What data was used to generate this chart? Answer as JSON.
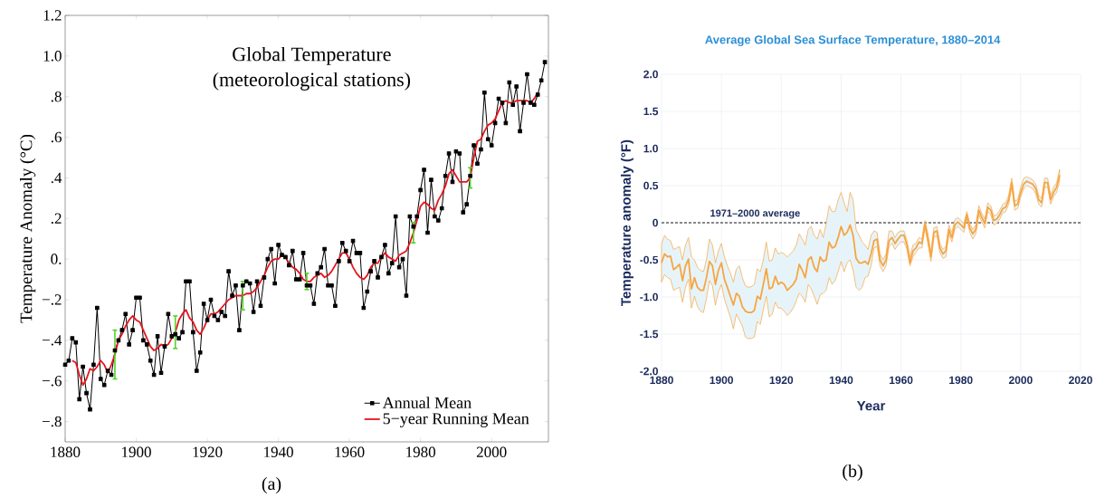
{
  "chart_data": [
    {
      "type": "line",
      "title": "Global Temperature",
      "subtitle": "(meteorological stations)",
      "ylabel": "Temperature Anomaly (°C)",
      "xlim": [
        1880,
        2016
      ],
      "ylim": [
        -0.9,
        1.2
      ],
      "xticks": [
        1880,
        1900,
        1920,
        1940,
        1960,
        1980,
        2000
      ],
      "yticks": [
        1.2,
        {
          "value": 1.0,
          "label": "1.0"
        },
        {
          "value": 0.8,
          "label": ".8"
        },
        {
          "value": 0.6,
          "label": ".6"
        },
        {
          "value": 0.4,
          "label": ".4"
        },
        {
          "value": 0.2,
          "label": ".2"
        },
        {
          "value": 0,
          "label": "0."
        },
        {
          "value": -0.2,
          "label": "−.2"
        },
        {
          "value": -0.4,
          "label": "−.4"
        },
        {
          "value": -0.6,
          "label": "−.6"
        },
        {
          "value": -0.8,
          "label": "−.8"
        }
      ],
      "legend": "bottom right",
      "annotations": [
        "(a)"
      ],
      "series": [
        {
          "name": "Annual Mean",
          "color": "#000000",
          "marker": "square",
          "x": [
            1880,
            1881,
            1882,
            1883,
            1884,
            1885,
            1886,
            1887,
            1888,
            1889,
            1890,
            1891,
            1892,
            1893,
            1894,
            1895,
            1896,
            1897,
            1898,
            1899,
            1900,
            1901,
            1902,
            1903,
            1904,
            1905,
            1906,
            1907,
            1908,
            1909,
            1910,
            1911,
            1912,
            1913,
            1914,
            1915,
            1916,
            1917,
            1918,
            1919,
            1920,
            1921,
            1922,
            1923,
            1924,
            1925,
            1926,
            1927,
            1928,
            1929,
            1930,
            1931,
            1932,
            1933,
            1934,
            1935,
            1936,
            1937,
            1938,
            1939,
            1940,
            1941,
            1942,
            1943,
            1944,
            1945,
            1946,
            1947,
            1948,
            1949,
            1950,
            1951,
            1952,
            1953,
            1954,
            1955,
            1956,
            1957,
            1958,
            1959,
            1960,
            1961,
            1962,
            1963,
            1964,
            1965,
            1966,
            1967,
            1968,
            1969,
            1970,
            1971,
            1972,
            1973,
            1974,
            1975,
            1976,
            1977,
            1978,
            1979,
            1980,
            1981,
            1982,
            1983,
            1984,
            1985,
            1986,
            1987,
            1988,
            1989,
            1990,
            1991,
            1992,
            1993,
            1994,
            1995,
            1996,
            1997,
            1998,
            1999,
            2000,
            2001,
            2002,
            2003,
            2004,
            2005,
            2006,
            2007,
            2008,
            2009,
            2010,
            2011,
            2012,
            2013,
            2014,
            2015
          ],
          "values": [
            -0.52,
            -0.5,
            -0.39,
            -0.41,
            -0.69,
            -0.53,
            -0.66,
            -0.74,
            -0.52,
            -0.24,
            -0.59,
            -0.62,
            -0.55,
            -0.57,
            -0.45,
            -0.4,
            -0.35,
            -0.27,
            -0.42,
            -0.35,
            -0.19,
            -0.19,
            -0.4,
            -0.42,
            -0.5,
            -0.57,
            -0.38,
            -0.56,
            -0.43,
            -0.27,
            -0.38,
            -0.37,
            -0.39,
            -0.36,
            -0.11,
            -0.11,
            -0.36,
            -0.55,
            -0.46,
            -0.22,
            -0.3,
            -0.2,
            -0.28,
            -0.3,
            -0.26,
            -0.28,
            -0.06,
            -0.18,
            -0.13,
            -0.35,
            -0.13,
            -0.11,
            -0.12,
            -0.26,
            -0.11,
            -0.23,
            -0.09,
            0.0,
            0.05,
            -0.12,
            0.07,
            0.02,
            0.01,
            -0.03,
            0.04,
            -0.1,
            -0.1,
            0.03,
            -0.13,
            -0.13,
            -0.22,
            -0.07,
            -0.04,
            0.05,
            -0.13,
            -0.13,
            -0.23,
            -0.01,
            0.08,
            0.04,
            -0.01,
            0.09,
            0.03,
            0.03,
            -0.24,
            -0.16,
            -0.06,
            -0.01,
            -0.09,
            0.01,
            0.07,
            -0.07,
            -0.02,
            0.21,
            -0.04,
            0.0,
            -0.18,
            0.21,
            0.16,
            0.21,
            0.34,
            0.44,
            0.13,
            0.39,
            0.21,
            0.19,
            0.25,
            0.41,
            0.52,
            0.38,
            0.53,
            0.52,
            0.23,
            0.27,
            0.41,
            0.56,
            0.47,
            0.54,
            0.82,
            0.59,
            0.56,
            0.67,
            0.79,
            0.77,
            0.67,
            0.87,
            0.76,
            0.85,
            0.63,
            0.77,
            0.91,
            0.77,
            0.76,
            0.81,
            0.88,
            0.97
          ]
        },
        {
          "name": "5−year Running Mean",
          "color": "#e8141c",
          "marker": "none",
          "x": [
            1882,
            1883,
            1884,
            1885,
            1886,
            1887,
            1888,
            1889,
            1890,
            1891,
            1892,
            1893,
            1894,
            1895,
            1896,
            1897,
            1898,
            1899,
            1900,
            1901,
            1902,
            1903,
            1904,
            1905,
            1906,
            1907,
            1908,
            1909,
            1910,
            1911,
            1912,
            1913,
            1914,
            1915,
            1916,
            1917,
            1918,
            1919,
            1920,
            1921,
            1922,
            1923,
            1924,
            1925,
            1926,
            1927,
            1928,
            1929,
            1930,
            1931,
            1932,
            1933,
            1934,
            1935,
            1936,
            1937,
            1938,
            1939,
            1940,
            1941,
            1942,
            1943,
            1944,
            1945,
            1946,
            1947,
            1948,
            1949,
            1950,
            1951,
            1952,
            1953,
            1954,
            1955,
            1956,
            1957,
            1958,
            1959,
            1960,
            1961,
            1962,
            1963,
            1964,
            1965,
            1966,
            1967,
            1968,
            1969,
            1970,
            1971,
            1972,
            1973,
            1974,
            1975,
            1976,
            1977,
            1978,
            1979,
            1980,
            1981,
            1982,
            1983,
            1984,
            1985,
            1986,
            1987,
            1988,
            1989,
            1990,
            1991,
            1992,
            1993,
            1994,
            1995,
            1996,
            1997,
            1998,
            1999,
            2000,
            2001,
            2002,
            2003,
            2004,
            2005,
            2006,
            2007,
            2008,
            2009,
            2010,
            2011,
            2012,
            2013
          ],
          "values": [
            -0.5,
            -0.51,
            -0.57,
            -0.62,
            -0.59,
            -0.54,
            -0.55,
            -0.53,
            -0.5,
            -0.52,
            -0.56,
            -0.52,
            -0.47,
            -0.4,
            -0.37,
            -0.33,
            -0.3,
            -0.28,
            -0.3,
            -0.31,
            -0.35,
            -0.39,
            -0.43,
            -0.45,
            -0.44,
            -0.42,
            -0.43,
            -0.42,
            -0.39,
            -0.36,
            -0.3,
            -0.27,
            -0.25,
            -0.29,
            -0.31,
            -0.35,
            -0.37,
            -0.34,
            -0.3,
            -0.27,
            -0.27,
            -0.26,
            -0.24,
            -0.22,
            -0.2,
            -0.19,
            -0.18,
            -0.18,
            -0.18,
            -0.17,
            -0.17,
            -0.16,
            -0.14,
            -0.11,
            -0.08,
            -0.04,
            -0.01,
            0.0,
            0.0,
            0.02,
            0.01,
            -0.02,
            -0.04,
            -0.05,
            -0.07,
            -0.1,
            -0.11,
            -0.11,
            -0.09,
            -0.08,
            -0.07,
            -0.09,
            -0.08,
            -0.06,
            -0.03,
            0.0,
            0.03,
            0.03,
            0.0,
            -0.04,
            -0.07,
            -0.09,
            -0.1,
            -0.08,
            -0.04,
            -0.02,
            -0.02,
            0.01,
            0.03,
            0.01,
            0.0,
            -0.01,
            0.02,
            0.03,
            0.04,
            0.08,
            0.13,
            0.19,
            0.26,
            0.28,
            0.27,
            0.25,
            0.24,
            0.29,
            0.32,
            0.36,
            0.42,
            0.44,
            0.41,
            0.38,
            0.38,
            0.38,
            0.4,
            0.5,
            0.58,
            0.59,
            0.63,
            0.66,
            0.67,
            0.69,
            0.73,
            0.77,
            0.78,
            0.77,
            0.77,
            0.78,
            0.78,
            0.78,
            0.78,
            0.77,
            0.79,
            0.82
          ],
          "errors": [
            null,
            null,
            null,
            null,
            null,
            null,
            null,
            null,
            null,
            null,
            null,
            null,
            0.12,
            null,
            null,
            null,
            null,
            null,
            null,
            null,
            null,
            null,
            null,
            null,
            null,
            null,
            null,
            null,
            null,
            0.08,
            null,
            null,
            null,
            null,
            null,
            null,
            null,
            null,
            null,
            null,
            null,
            null,
            null,
            null,
            null,
            null,
            null,
            null,
            0.07,
            null,
            null,
            null,
            null,
            null,
            null,
            null,
            null,
            null,
            null,
            null,
            null,
            null,
            null,
            null,
            null,
            null,
            0.04,
            null,
            null,
            null,
            null,
            null,
            null,
            null,
            null,
            null,
            null,
            null,
            null,
            null,
            null,
            null,
            null,
            null,
            null,
            null,
            null,
            null,
            null,
            null,
            null,
            null,
            null,
            null,
            null,
            null,
            0.05,
            null,
            null,
            null,
            null,
            null,
            null,
            null,
            null,
            null,
            null,
            null,
            null,
            null,
            null,
            null,
            0.05,
            null,
            null,
            null,
            null,
            null,
            null,
            null,
            null,
            null,
            null,
            null,
            null,
            null,
            null,
            null,
            null,
            null,
            null,
            null
          ]
        }
      ]
    },
    {
      "type": "line",
      "title": "Average Global Sea Surface Temperature, 1880–2014",
      "xlabel": "Year",
      "ylabel": "Temperature anomaly (°F)",
      "xlim": [
        1880,
        2020
      ],
      "ylim": [
        -2,
        2
      ],
      "xticks": [
        1880,
        1900,
        1920,
        1940,
        1960,
        1980,
        2000,
        2020
      ],
      "yticks": [
        {
          "value": 2,
          "label": "2.0"
        },
        1.5,
        {
          "value": 1,
          "label": "1.0"
        },
        0.5,
        0,
        -0.5,
        {
          "value": -1,
          "label": "-1.0"
        },
        -1.5,
        {
          "value": -2,
          "label": "-2.0"
        }
      ],
      "grid": true,
      "annotations": [
        "(b)"
      ],
      "ref_lines": [
        {
          "axis": "y",
          "value": 0,
          "label": "1971–2000 average",
          "color": "#000000",
          "line_style": "dashed"
        }
      ],
      "series": [
        {
          "color": "#f7a541",
          "x": [
            1880,
            1881,
            1882,
            1883,
            1884,
            1885,
            1886,
            1887,
            1888,
            1889,
            1890,
            1891,
            1892,
            1893,
            1894,
            1895,
            1896,
            1897,
            1898,
            1899,
            1900,
            1901,
            1902,
            1903,
            1904,
            1905,
            1906,
            1907,
            1908,
            1909,
            1910,
            1911,
            1912,
            1913,
            1914,
            1915,
            1916,
            1917,
            1918,
            1919,
            1920,
            1921,
            1922,
            1923,
            1924,
            1925,
            1926,
            1927,
            1928,
            1929,
            1930,
            1931,
            1932,
            1933,
            1934,
            1935,
            1936,
            1937,
            1938,
            1939,
            1940,
            1941,
            1942,
            1943,
            1944,
            1945,
            1946,
            1947,
            1948,
            1949,
            1950,
            1951,
            1952,
            1953,
            1954,
            1955,
            1956,
            1957,
            1958,
            1959,
            1960,
            1961,
            1962,
            1963,
            1964,
            1965,
            1966,
            1967,
            1968,
            1969,
            1970,
            1971,
            1972,
            1973,
            1974,
            1975,
            1976,
            1977,
            1978,
            1979,
            1980,
            1981,
            1982,
            1983,
            1984,
            1985,
            1986,
            1987,
            1988,
            1989,
            1990,
            1991,
            1992,
            1993,
            1994,
            1995,
            1996,
            1997,
            1998,
            1999,
            2000,
            2001,
            2002,
            2003,
            2004,
            2005,
            2006,
            2007,
            2008,
            2009,
            2010,
            2011,
            2012,
            2013
          ],
          "values": [
            -0.54,
            -0.42,
            -0.46,
            -0.45,
            -0.63,
            -0.6,
            -0.56,
            -0.78,
            -0.58,
            -0.49,
            -0.89,
            -0.74,
            -0.87,
            -0.91,
            -0.91,
            -0.74,
            -0.52,
            -0.58,
            -0.83,
            -0.64,
            -0.54,
            -0.76,
            -0.87,
            -0.99,
            -1.11,
            -0.95,
            -0.99,
            -1.13,
            -1.19,
            -1.21,
            -1.21,
            -1.18,
            -0.99,
            -1.03,
            -0.83,
            -0.62,
            -0.89,
            -0.87,
            -0.72,
            -0.83,
            -0.8,
            -0.83,
            -0.91,
            -0.87,
            -0.83,
            -0.76,
            -0.56,
            -0.64,
            -0.74,
            -0.5,
            -0.46,
            -0.6,
            -0.66,
            -0.46,
            -0.52,
            -0.5,
            -0.26,
            -0.34,
            -0.32,
            -0.2,
            -0.05,
            -0.17,
            -0.13,
            -0.03,
            -0.17,
            -0.48,
            -0.54,
            -0.54,
            -0.52,
            -0.56,
            -0.42,
            -0.24,
            -0.22,
            -0.5,
            -0.58,
            -0.5,
            -0.24,
            -0.2,
            -0.28,
            -0.22,
            -0.17,
            -0.17,
            -0.3,
            -0.54,
            -0.38,
            -0.34,
            -0.26,
            -0.28,
            -0.01,
            -0.22,
            -0.46,
            -0.13,
            -0.11,
            -0.34,
            -0.42,
            -0.38,
            -0.09,
            -0.2,
            -0.03,
            0.01,
            -0.03,
            -0.07,
            0.11,
            -0.07,
            -0.15,
            -0.09,
            0.17,
            0.07,
            -0.01,
            0.21,
            0.17,
            0.03,
            0.05,
            0.11,
            0.19,
            0.21,
            0.31,
            0.54,
            0.23,
            0.25,
            0.41,
            0.52,
            0.56,
            0.54,
            0.52,
            0.46,
            0.31,
            0.27,
            0.54,
            0.54,
            0.31,
            0.41,
            0.48,
            0.64
          ],
          "upper": [
            -0.28,
            -0.17,
            -0.22,
            -0.24,
            -0.36,
            -0.34,
            -0.32,
            -0.5,
            -0.3,
            -0.2,
            -0.46,
            -0.5,
            -0.6,
            -0.64,
            -0.66,
            -0.5,
            -0.22,
            -0.3,
            -0.54,
            -0.38,
            -0.28,
            -0.46,
            -0.58,
            -0.68,
            -0.8,
            -0.62,
            -0.58,
            -0.74,
            -0.85,
            -0.87,
            -0.86,
            -0.83,
            -0.62,
            -0.66,
            -0.5,
            -0.26,
            -0.52,
            -0.5,
            -0.34,
            -0.42,
            -0.4,
            -0.42,
            -0.46,
            -0.42,
            -0.38,
            -0.3,
            -0.15,
            -0.22,
            -0.3,
            -0.09,
            -0.05,
            -0.17,
            -0.22,
            -0.09,
            -0.2,
            -0.01,
            0.23,
            0.15,
            0.15,
            0.31,
            0.41,
            0.27,
            0.15,
            0.41,
            0.31,
            -0.09,
            -0.17,
            -0.26,
            -0.3,
            -0.36,
            -0.17,
            -0.11,
            -0.13,
            -0.42,
            -0.5,
            -0.42,
            -0.11,
            -0.11,
            -0.2,
            -0.13,
            -0.11,
            -0.11,
            -0.24,
            -0.46,
            -0.3,
            -0.28,
            -0.2,
            -0.22,
            0.03,
            -0.15,
            -0.4,
            -0.07,
            -0.05,
            -0.28,
            -0.36,
            -0.32,
            -0.03,
            -0.13,
            0.04,
            0.07,
            0.03,
            -0.01,
            0.15,
            -0.01,
            -0.09,
            -0.03,
            0.23,
            0.13,
            0.05,
            0.27,
            0.23,
            0.09,
            0.11,
            0.17,
            0.25,
            0.27,
            0.37,
            0.6,
            0.29,
            0.31,
            0.48,
            0.6,
            0.62,
            0.6,
            0.58,
            0.52,
            0.37,
            0.33,
            0.6,
            0.6,
            0.37,
            0.48,
            0.54,
            0.72
          ],
          "lower": [
            -0.8,
            -0.7,
            -0.74,
            -0.76,
            -0.91,
            -0.89,
            -0.87,
            -1.07,
            -0.87,
            -0.76,
            -1.15,
            -0.99,
            -1.13,
            -1.19,
            -1.21,
            -1.02,
            -0.78,
            -0.85,
            -1.11,
            -0.93,
            -0.83,
            -1.03,
            -1.15,
            -1.27,
            -1.43,
            -1.23,
            -1.31,
            -1.39,
            -1.54,
            -1.56,
            -1.56,
            -1.54,
            -1.33,
            -1.37,
            -1.17,
            -0.99,
            -1.27,
            -1.23,
            -1.07,
            -1.15,
            -1.15,
            -1.19,
            -1.25,
            -1.21,
            -1.15,
            -1.05,
            -0.95,
            -0.99,
            -1.07,
            -0.83,
            -0.89,
            -0.99,
            -1.1,
            -0.97,
            -0.95,
            -0.91,
            -0.74,
            -0.83,
            -0.78,
            -0.66,
            -0.52,
            -0.66,
            -0.54,
            -0.5,
            -0.64,
            -0.87,
            -0.91,
            -0.87,
            -0.74,
            -0.72,
            -0.58,
            -0.34,
            -0.32,
            -0.58,
            -0.66,
            -0.58,
            -0.32,
            -0.28,
            -0.36,
            -0.3,
            -0.26,
            -0.26,
            -0.36,
            -0.58,
            -0.46,
            -0.4,
            -0.34,
            -0.34,
            -0.07,
            -0.28,
            -0.52,
            -0.2,
            -0.17,
            -0.4,
            -0.48,
            -0.46,
            -0.15,
            -0.26,
            -0.09,
            -0.05,
            -0.09,
            -0.13,
            0.05,
            -0.13,
            -0.22,
            -0.15,
            0.11,
            0.01,
            -0.07,
            0.15,
            0.11,
            -0.03,
            -0.01,
            0.05,
            0.13,
            0.15,
            0.25,
            0.48,
            0.17,
            0.19,
            0.35,
            0.46,
            0.5,
            0.48,
            0.46,
            0.39,
            0.25,
            0.21,
            0.48,
            0.48,
            0.25,
            0.35,
            0.41,
            0.56
          ]
        }
      ]
    }
  ]
}
